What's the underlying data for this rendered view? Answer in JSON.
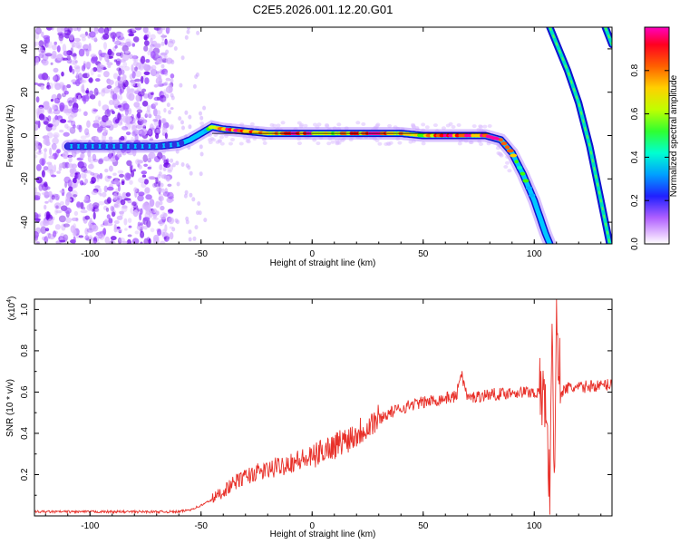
{
  "title": "C2E5.2026.001.12.20.G01",
  "colors": {
    "snr_line": "#e8312a",
    "axis": "#000000",
    "background": "#ffffff"
  },
  "chart_data": [
    {
      "type": "heatmap",
      "name": "spectrogram",
      "xlabel": "Height of straight line (km)",
      "ylabel": "Frequency (Hz)",
      "xlim": [
        -125,
        135
      ],
      "ylim": [
        -50,
        50
      ],
      "x_ticks": [
        -100,
        -50,
        0,
        50,
        100
      ],
      "y_ticks": [
        -40,
        -20,
        0,
        20,
        40
      ],
      "colorbar": {
        "label": "Normalized spectral amplitude",
        "range": [
          0.0,
          1.0
        ],
        "ticks": [
          0.0,
          0.2,
          0.4,
          0.6,
          0.8
        ],
        "colormap": [
          "#ffffff",
          "#d9b3ff",
          "#8f00ff",
          "#2000ff",
          "#00b4ff",
          "#00ffc0",
          "#40ff00",
          "#c8ff00",
          "#ffd000",
          "#ff6000",
          "#ff0000",
          "#ff00a0"
        ]
      },
      "signal_track": [
        {
          "x": -110,
          "f": -5,
          "a": 0.3
        },
        {
          "x": -100,
          "f": -5,
          "a": 0.3
        },
        {
          "x": -90,
          "f": -5,
          "a": 0.25
        },
        {
          "x": -80,
          "f": -5,
          "a": 0.3
        },
        {
          "x": -70,
          "f": -5,
          "a": 0.3
        },
        {
          "x": -60,
          "f": -4,
          "a": 0.35
        },
        {
          "x": -55,
          "f": -2,
          "a": 0.4
        },
        {
          "x": -50,
          "f": 1,
          "a": 0.5
        },
        {
          "x": -45,
          "f": 4,
          "a": 0.6
        },
        {
          "x": -40,
          "f": 3,
          "a": 0.8
        },
        {
          "x": -30,
          "f": 2,
          "a": 0.9
        },
        {
          "x": -20,
          "f": 1,
          "a": 0.7
        },
        {
          "x": -10,
          "f": 1,
          "a": 0.9
        },
        {
          "x": 0,
          "f": 1,
          "a": 0.85
        },
        {
          "x": 10,
          "f": 1,
          "a": 0.7
        },
        {
          "x": 20,
          "f": 1,
          "a": 0.8
        },
        {
          "x": 30,
          "f": 1,
          "a": 0.9
        },
        {
          "x": 40,
          "f": 1,
          "a": 0.75
        },
        {
          "x": 50,
          "f": 0,
          "a": 0.7
        },
        {
          "x": 60,
          "f": 0,
          "a": 0.9
        },
        {
          "x": 70,
          "f": 0,
          "a": 0.85
        },
        {
          "x": 78,
          "f": 0,
          "a": 0.9
        },
        {
          "x": 85,
          "f": -2,
          "a": 0.9
        },
        {
          "x": 90,
          "f": -8,
          "a": 0.7
        },
        {
          "x": 95,
          "f": -18,
          "a": 0.6
        },
        {
          "x": 100,
          "f": -30,
          "a": 0.5
        },
        {
          "x": 105,
          "f": -45,
          "a": 0.5
        },
        {
          "x": 107,
          "f": -50,
          "a": 0.5
        }
      ],
      "alias_track_1": [
        {
          "x": 107,
          "f": 50
        },
        {
          "x": 115,
          "f": 30
        },
        {
          "x": 120,
          "f": 15
        },
        {
          "x": 125,
          "f": -5
        },
        {
          "x": 130,
          "f": -30
        },
        {
          "x": 134,
          "f": -50
        }
      ],
      "alias_track_2": [
        {
          "x": 132,
          "f": 50
        },
        {
          "x": 135,
          "f": 42
        }
      ]
    },
    {
      "type": "line",
      "name": "snr",
      "xlabel": "Height of straight line (km)",
      "ylabel": "SNR (10 * v/v)",
      "y_scale_label": "(x10",
      "y_scale_exp": "4",
      "y_scale_close": ")",
      "xlim": [
        -125,
        135
      ],
      "ylim": [
        0.0,
        1.05
      ],
      "x_ticks": [
        -100,
        -50,
        0,
        50,
        100
      ],
      "y_ticks": [
        0.2,
        0.4,
        0.6,
        0.8,
        1.0
      ],
      "y_tick_labels": [
        "0.2",
        "0.4",
        "0.6",
        "0.8",
        "1.0"
      ],
      "series": [
        {
          "name": "SNR",
          "x": [
            -125,
            -110,
            -100,
            -90,
            -80,
            -70,
            -60,
            -55,
            -50,
            -45,
            -40,
            -35,
            -30,
            -25,
            -20,
            -15,
            -10,
            -5,
            0,
            5,
            10,
            15,
            20,
            25,
            30,
            35,
            40,
            45,
            50,
            55,
            60,
            65,
            67,
            70,
            75,
            80,
            85,
            90,
            95,
            100,
            105,
            107,
            108,
            109,
            110,
            112,
            115,
            120,
            125,
            130,
            135
          ],
          "values": [
            0.02,
            0.02,
            0.02,
            0.02,
            0.02,
            0.02,
            0.02,
            0.03,
            0.05,
            0.08,
            0.12,
            0.16,
            0.19,
            0.21,
            0.22,
            0.24,
            0.26,
            0.27,
            0.28,
            0.32,
            0.34,
            0.37,
            0.4,
            0.44,
            0.47,
            0.5,
            0.52,
            0.54,
            0.55,
            0.56,
            0.57,
            0.58,
            0.7,
            0.57,
            0.58,
            0.59,
            0.59,
            0.6,
            0.6,
            0.6,
            0.58,
            0.1,
            1.05,
            0.05,
            0.95,
            0.6,
            0.62,
            0.62,
            0.63,
            0.63,
            0.64
          ]
        }
      ]
    }
  ]
}
